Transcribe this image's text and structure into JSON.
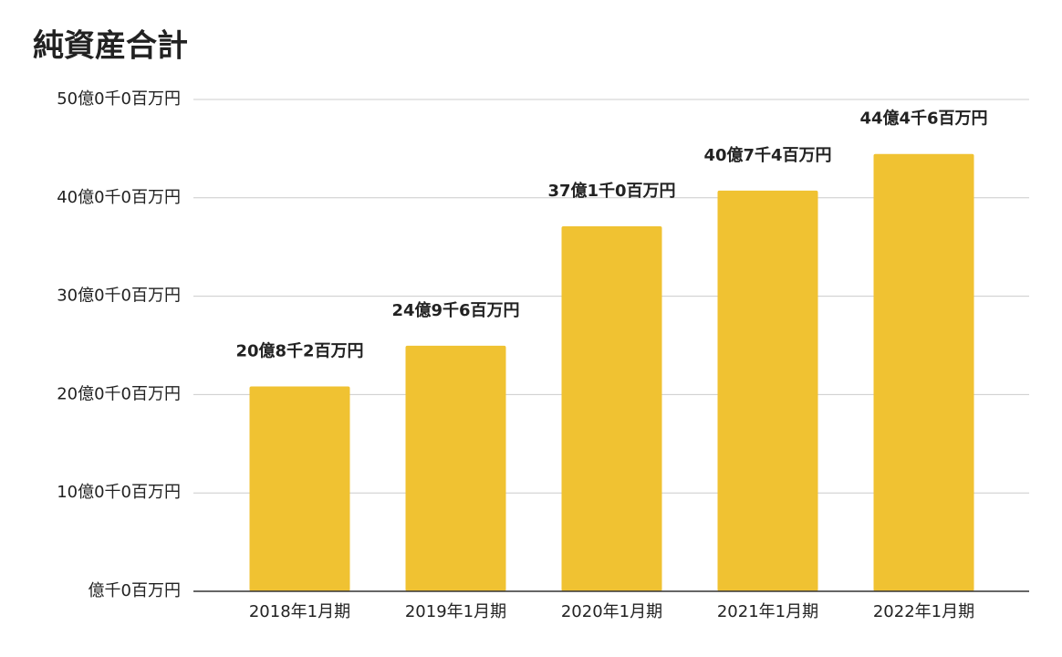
{
  "chart_data": {
    "type": "bar",
    "title": "純資産合計",
    "categories": [
      "2018年1月期",
      "2019年1月期",
      "2020年1月期",
      "2021年1月期",
      "2022年1月期"
    ],
    "values": [
      2082000000,
      2496000000,
      3710000000,
      4074000000,
      4446000000
    ],
    "value_labels": [
      "20億8千2百万円",
      "24億9千6百万円",
      "37億1千0百万円",
      "40億7千4百万円",
      "44億4千6百万円"
    ],
    "color": "#f0c232",
    "ylim": [
      0,
      5000000000
    ],
    "yticks": [
      {
        "value": 0,
        "label": "億千0百万円"
      },
      {
        "value": 1000000000,
        "label": "10億0千0百万円"
      },
      {
        "value": 2000000000,
        "label": "20億0千0百万円"
      },
      {
        "value": 3000000000,
        "label": "30億0千0百万円"
      },
      {
        "value": 4000000000,
        "label": "40億0千0百万円"
      },
      {
        "value": 5000000000,
        "label": "50億0千0百万円"
      }
    ],
    "grid": true
  }
}
